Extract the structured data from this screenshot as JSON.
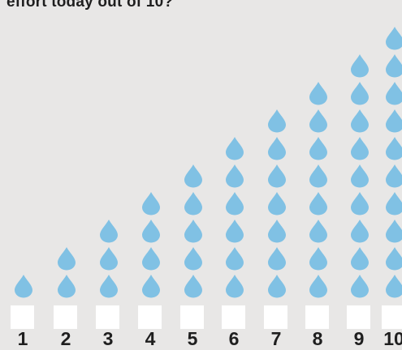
{
  "question": "effort today out of 10?",
  "icon": "water-drop-icon",
  "colors": {
    "background": "#e8e7e6",
    "drop": "#80c1e4",
    "checkbox": "#ffffff",
    "text": "#1f1f1f"
  },
  "options": [
    {
      "label": "1",
      "drops": 1
    },
    {
      "label": "2",
      "drops": 2
    },
    {
      "label": "3",
      "drops": 3
    },
    {
      "label": "4",
      "drops": 4
    },
    {
      "label": "5",
      "drops": 5
    },
    {
      "label": "6",
      "drops": 6
    },
    {
      "label": "7",
      "drops": 7
    },
    {
      "label": "8",
      "drops": 8
    },
    {
      "label": "9",
      "drops": 9
    },
    {
      "label": "10",
      "drops": 10
    }
  ]
}
